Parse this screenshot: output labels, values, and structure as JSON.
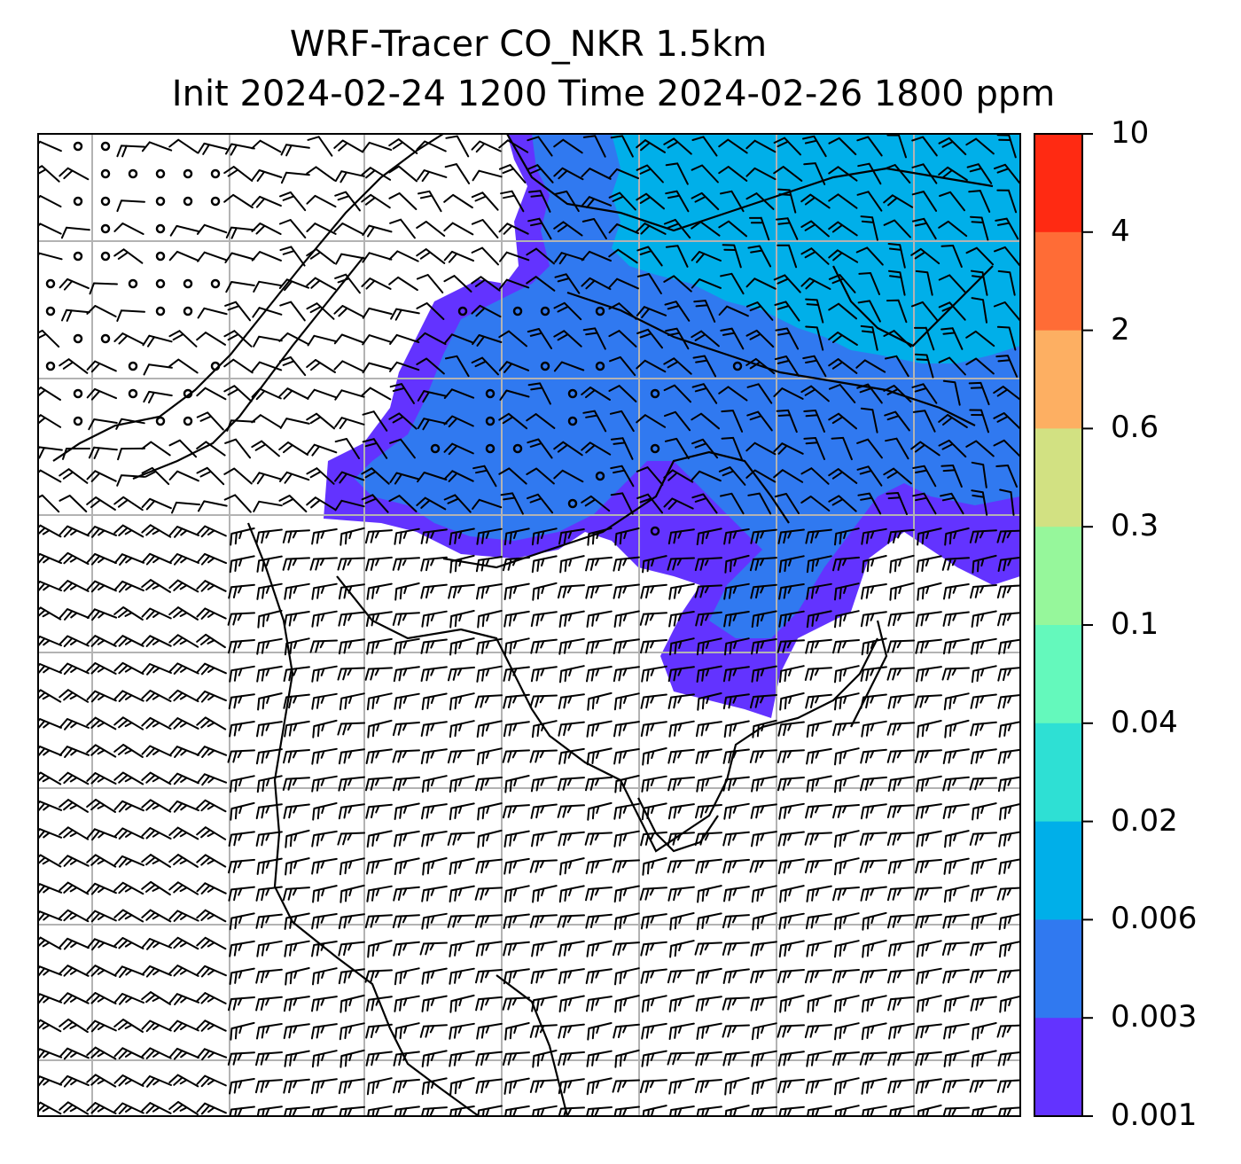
{
  "title": {
    "line1": "WRF-Tracer CO_NKR 1.5km",
    "line2": "Init 2024-02-24 1200 Time 2024-02-26 1800 ppm"
  },
  "map": {
    "variable": "CO_NKR tracer concentration",
    "units": "ppm",
    "level": "1.5km",
    "overlays": [
      "wind-barbs",
      "coastlines",
      "gridlines"
    ],
    "plume_region": "north-east quadrant of domain"
  },
  "colorbar": {
    "levels": [
      "10",
      "4",
      "2",
      "0.6",
      "0.3",
      "0.1",
      "0.04",
      "0.02",
      "0.006",
      "0.003",
      "0.001"
    ],
    "colors": [
      "#ff2a12",
      "#ff6c36",
      "#fdaf62",
      "#d2e182",
      "#96f79b",
      "#64f9bc",
      "#2ee0d4",
      "#00afe9",
      "#3079f0",
      "#6333ff"
    ]
  }
}
